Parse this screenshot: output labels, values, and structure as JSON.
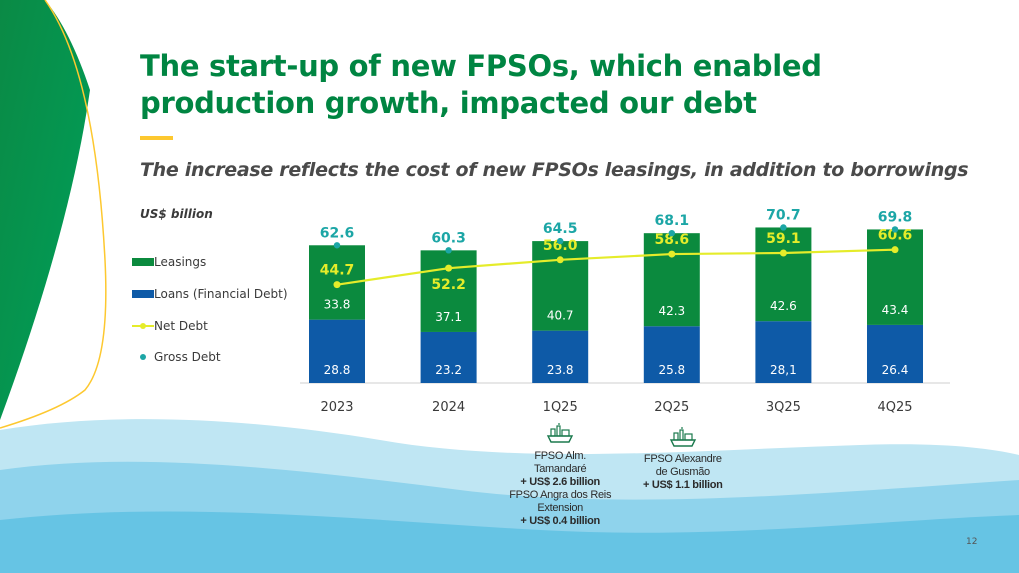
{
  "slide": {
    "title": "The start-up of new FPSOs, which enabled production growth, impacted our debt",
    "subtitle": "The increase reflects the cost of new FPSOs leasings, in addition to borrowings",
    "page_number": "12",
    "colors": {
      "brand_green": "#008542",
      "accent_yellow": "#fdc82f",
      "leasings": "#0b8a3e",
      "loans": "#0e5aa7",
      "net_debt": "#e5ec2a",
      "gross_debt": "#1ca6a6"
    }
  },
  "legend": {
    "leasings": "Leasings",
    "loans": "Loans (Financial Debt)",
    "net_debt": "Net Debt",
    "gross_debt": "Gross Debt"
  },
  "chart_data": {
    "type": "bar",
    "stacked": true,
    "unit_label": "US$ billion",
    "categories": [
      "2023",
      "2024",
      "1Q25",
      "2Q25",
      "3Q25",
      "4Q25"
    ],
    "series": [
      {
        "name": "Loans (Financial Debt)",
        "kind": "bar",
        "values": [
          28.8,
          23.2,
          23.8,
          25.8,
          28.1,
          26.4
        ],
        "labels": [
          "28.8",
          "23.2",
          "23.8",
          "25.8",
          "28,1",
          "26.4"
        ]
      },
      {
        "name": "Leasings",
        "kind": "bar",
        "values": [
          33.8,
          37.1,
          40.7,
          42.3,
          42.6,
          43.4
        ],
        "labels": [
          "33.8",
          "37.1",
          "40.7",
          "42.3",
          "42.6",
          "43.4"
        ]
      },
      {
        "name": "Net Debt",
        "kind": "line",
        "values": [
          44.7,
          52.2,
          56.0,
          58.6,
          59.1,
          60.6
        ],
        "labels": [
          "44.7",
          "52.2",
          "56.0",
          "58.6",
          "59.1",
          "60.6"
        ]
      },
      {
        "name": "Gross Debt",
        "kind": "point",
        "values": [
          62.6,
          60.3,
          64.5,
          68.1,
          70.7,
          69.8
        ],
        "labels": [
          "62.6",
          "60.3",
          "64.5",
          "68.1",
          "70.7",
          "69.8"
        ]
      }
    ],
    "ylim": [
      0,
      72
    ],
    "legend_position": "left"
  },
  "annotations": [
    {
      "icon": "ship-icon",
      "category": "1Q25",
      "lines": [
        {
          "text": "FPSO Alm.",
          "bold": false
        },
        {
          "text": "Tamandaré",
          "bold": false
        },
        {
          "text": "+ US$ 2.6 billion",
          "bold": true
        },
        {
          "text": "FPSO Angra dos Reis",
          "bold": false
        },
        {
          "text": "Extension",
          "bold": false
        },
        {
          "text": "+ US$ 0.4 billion",
          "bold": true
        }
      ]
    },
    {
      "icon": "ship-icon",
      "category": "2Q25",
      "lines": [
        {
          "text": "FPSO Alexandre",
          "bold": false
        },
        {
          "text": "de Gusmão",
          "bold": false
        },
        {
          "text": "+ US$ 1.1 billion",
          "bold": true
        }
      ]
    }
  ]
}
